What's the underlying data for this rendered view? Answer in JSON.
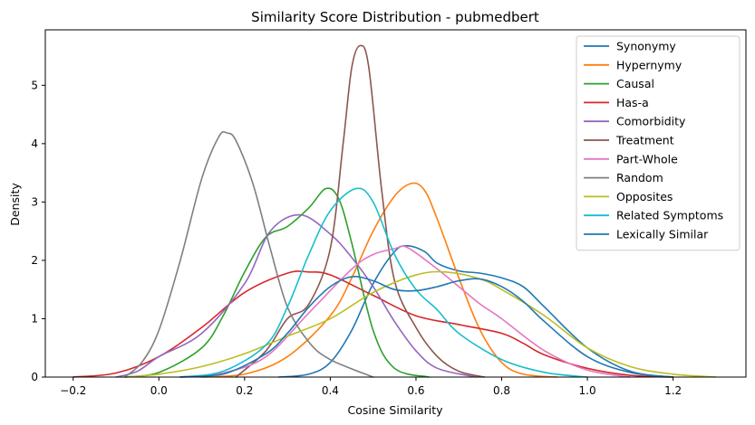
{
  "chart_data": {
    "type": "line",
    "title": "Similarity Score Distribution - pubmedbert",
    "xlabel": "Cosine Similarity",
    "ylabel": "Density",
    "xlim": [
      -0.265,
      1.37
    ],
    "ylim": [
      0,
      5.95
    ],
    "xticks": [
      -0.2,
      0.0,
      0.2,
      0.4,
      0.6,
      0.8,
      1.0,
      1.2
    ],
    "xtick_labels": [
      "−0.2",
      "0.0",
      "0.2",
      "0.4",
      "0.6",
      "0.8",
      "1.0",
      "1.2"
    ],
    "yticks": [
      0,
      1,
      2,
      3,
      4,
      5
    ],
    "ytick_labels": [
      "0",
      "1",
      "2",
      "3",
      "4",
      "5"
    ],
    "grid": false,
    "legend_position": "top-right",
    "series": [
      {
        "name": "Synonymy",
        "color": "#1f77b4",
        "x": [
          0.28,
          0.35,
          0.4,
          0.45,
          0.5,
          0.55,
          0.58,
          0.62,
          0.65,
          0.7,
          0.75,
          0.8,
          0.85,
          0.9,
          1.0,
          1.1,
          1.2
        ],
        "y": [
          0.0,
          0.05,
          0.25,
          0.8,
          1.6,
          2.15,
          2.25,
          2.15,
          1.95,
          1.82,
          1.78,
          1.7,
          1.55,
          1.2,
          0.5,
          0.1,
          0.0
        ]
      },
      {
        "name": "Hypernymy",
        "color": "#ff7f0e",
        "x": [
          0.1,
          0.2,
          0.3,
          0.4,
          0.45,
          0.5,
          0.55,
          0.59,
          0.62,
          0.65,
          0.7,
          0.75,
          0.8,
          0.85,
          0.93
        ],
        "y": [
          0.0,
          0.05,
          0.35,
          1.05,
          1.7,
          2.5,
          3.1,
          3.32,
          3.2,
          2.7,
          1.7,
          0.8,
          0.25,
          0.05,
          0.0
        ]
      },
      {
        "name": "Causal",
        "color": "#2ca02c",
        "x": [
          -0.08,
          0.0,
          0.1,
          0.15,
          0.2,
          0.25,
          0.3,
          0.35,
          0.39,
          0.42,
          0.45,
          0.5,
          0.55,
          0.63
        ],
        "y": [
          0.0,
          0.08,
          0.5,
          1.05,
          1.8,
          2.4,
          2.58,
          2.9,
          3.23,
          3.05,
          2.3,
          0.8,
          0.15,
          0.0
        ]
      },
      {
        "name": "Has-a",
        "color": "#d62728",
        "x": [
          -0.2,
          -0.1,
          0.0,
          0.1,
          0.2,
          0.3,
          0.35,
          0.4,
          0.5,
          0.6,
          0.7,
          0.8,
          0.85,
          0.9,
          1.0,
          1.1,
          1.2
        ],
        "y": [
          0.0,
          0.07,
          0.35,
          0.85,
          1.45,
          1.78,
          1.8,
          1.75,
          1.4,
          1.05,
          0.9,
          0.75,
          0.58,
          0.38,
          0.15,
          0.03,
          0.0
        ]
      },
      {
        "name": "Comorbidity",
        "color": "#9467bd",
        "x": [
          -0.1,
          -0.05,
          0.0,
          0.1,
          0.2,
          0.26,
          0.33,
          0.4,
          0.45,
          0.5,
          0.55,
          0.6,
          0.65,
          0.74
        ],
        "y": [
          0.0,
          0.1,
          0.35,
          0.75,
          1.6,
          2.5,
          2.78,
          2.45,
          2.05,
          1.55,
          0.95,
          0.45,
          0.15,
          0.0
        ]
      },
      {
        "name": "Treatment",
        "color": "#8c564b",
        "x": [
          0.18,
          0.25,
          0.3,
          0.35,
          0.4,
          0.43,
          0.45,
          0.47,
          0.49,
          0.52,
          0.55,
          0.6,
          0.65,
          0.7,
          0.76
        ],
        "y": [
          0.0,
          0.45,
          1.0,
          1.25,
          2.2,
          4.0,
          5.3,
          5.68,
          5.3,
          3.2,
          1.65,
          0.85,
          0.35,
          0.1,
          0.0
        ]
      },
      {
        "name": "Part-Whole",
        "color": "#e377c2",
        "x": [
          0.05,
          0.15,
          0.25,
          0.35,
          0.45,
          0.5,
          0.55,
          0.58,
          0.65,
          0.7,
          0.75,
          0.8,
          0.9,
          1.0,
          1.1
        ],
        "y": [
          0.0,
          0.07,
          0.35,
          1.1,
          1.85,
          2.1,
          2.2,
          2.22,
          1.85,
          1.55,
          1.25,
          1.0,
          0.45,
          0.12,
          0.0
        ]
      },
      {
        "name": "Random",
        "color": "#7f7f7f",
        "x": [
          -0.08,
          -0.04,
          0.0,
          0.05,
          0.1,
          0.14,
          0.16,
          0.18,
          0.22,
          0.26,
          0.3,
          0.35,
          0.4,
          0.5
        ],
        "y": [
          0.0,
          0.25,
          0.8,
          2.0,
          3.4,
          4.12,
          4.18,
          4.05,
          3.3,
          2.2,
          1.2,
          0.6,
          0.3,
          0.0
        ]
      },
      {
        "name": "Opposites",
        "color": "#bcbd22",
        "x": [
          -0.08,
          0.0,
          0.1,
          0.2,
          0.3,
          0.4,
          0.5,
          0.6,
          0.67,
          0.75,
          0.8,
          0.9,
          1.0,
          1.1,
          1.2,
          1.3
        ],
        "y": [
          0.0,
          0.05,
          0.18,
          0.4,
          0.7,
          1.0,
          1.45,
          1.75,
          1.8,
          1.68,
          1.5,
          1.05,
          0.5,
          0.18,
          0.05,
          0.0
        ]
      },
      {
        "name": "Related Symptoms",
        "color": "#17becf",
        "x": [
          0.05,
          0.15,
          0.25,
          0.3,
          0.35,
          0.4,
          0.46,
          0.5,
          0.55,
          0.6,
          0.65,
          0.7,
          0.8,
          0.9,
          1.0
        ],
        "y": [
          0.0,
          0.1,
          0.55,
          1.2,
          2.1,
          2.85,
          3.23,
          3.0,
          2.1,
          1.5,
          1.15,
          0.75,
          0.3,
          0.08,
          0.0
        ]
      },
      {
        "name": "Lexically Similar",
        "color": "#1f77b4",
        "x": [
          0.05,
          0.15,
          0.25,
          0.3,
          0.35,
          0.4,
          0.45,
          0.5,
          0.55,
          0.6,
          0.65,
          0.7,
          0.75,
          0.8,
          0.85,
          0.9,
          1.0,
          1.1,
          1.2
        ],
        "y": [
          0.0,
          0.05,
          0.4,
          0.75,
          1.2,
          1.55,
          1.72,
          1.65,
          1.5,
          1.48,
          1.55,
          1.65,
          1.68,
          1.55,
          1.3,
          0.95,
          0.35,
          0.08,
          0.0
        ]
      }
    ]
  }
}
